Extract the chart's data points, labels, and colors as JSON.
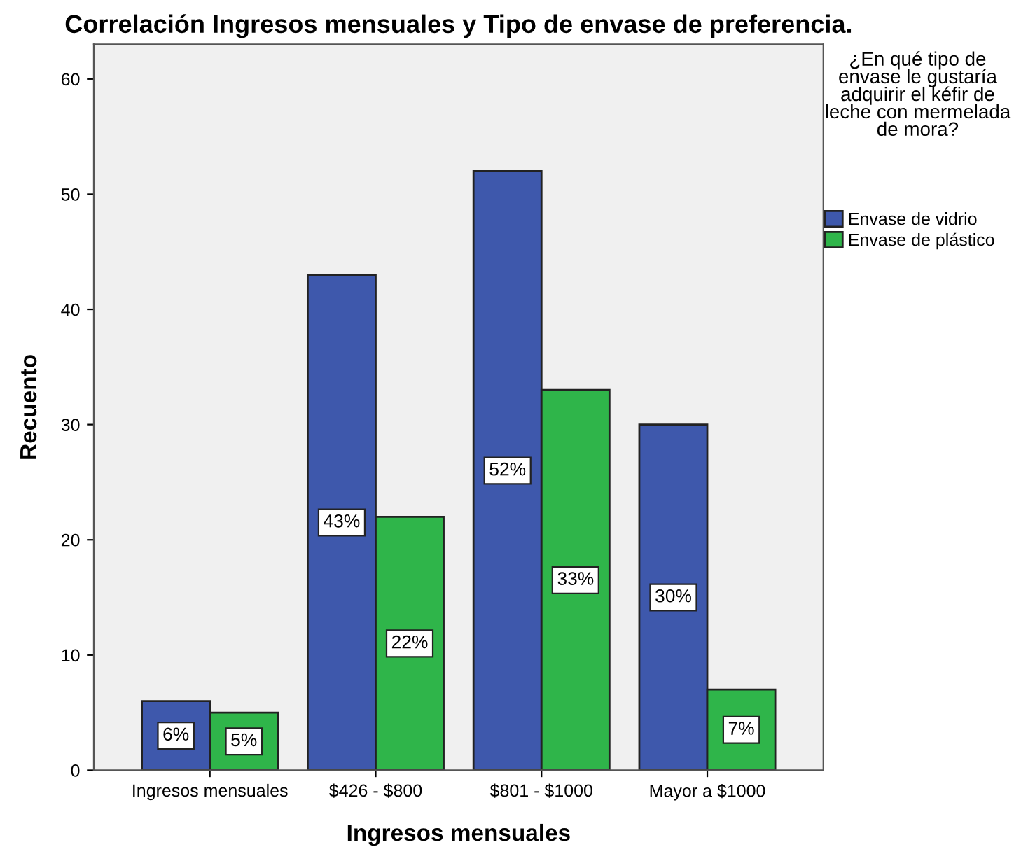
{
  "chart_data": {
    "type": "bar",
    "title": "Correlación Ingresos mensuales y Tipo de envase de preferencia.",
    "xlabel": "Ingresos mensuales",
    "ylabel": "Recuento",
    "legend_title": "¿En qué tipo de envase le gustaría adquirir el kéfir de leche con mermelada de mora?",
    "categories": [
      "Ingresos mensuales",
      "$426 - $800",
      "$801 - $1000",
      "Mayor a $1000"
    ],
    "series": [
      {
        "name": "Envase de vidrio",
        "color": "#3e58ac",
        "values": [
          6,
          43,
          52,
          30
        ],
        "value_labels": [
          "6%",
          "43%",
          "52%",
          "30%"
        ]
      },
      {
        "name": "Envase de plástico",
        "color": "#2fb54a",
        "values": [
          5,
          22,
          33,
          7
        ],
        "value_labels": [
          "5%",
          "22%",
          "33%",
          "7%"
        ]
      }
    ],
    "ylim": [
      0,
      63
    ],
    "yticks": [
      0,
      10,
      20,
      30,
      40,
      50,
      60
    ],
    "grid": false,
    "legend": "right"
  }
}
